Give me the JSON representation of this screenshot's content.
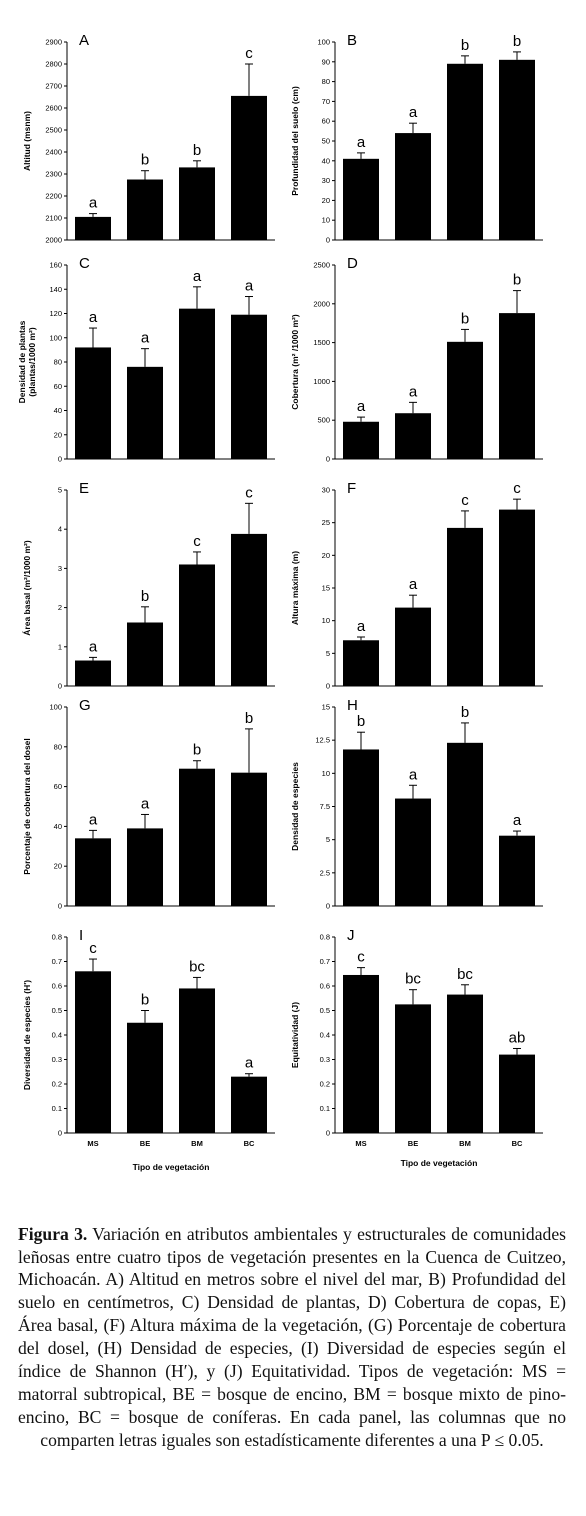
{
  "figure": {
    "xlabel": "Tipo de vegetación",
    "caption_label": "Figura 3.",
    "caption_text": "Variación en atributos ambientales y estructurales de comunidades leñosas entre cuatro tipos de vegetación presentes en la Cuenca de Cuitzeo, Michoacán. A) Altitud en metros sobre el nivel del mar, B) Profundidad del suelo en centímetros, C) Densidad de plantas, D) Cobertura de copas, E) Área basal, (F) Altura máxima de la vegetación, (G) Porcentaje de cobertura del dosel, (H) Densidad de especies, (I) Diversidad de especies según el índice de Shannon (H′), y (J) Equitatividad. Tipos de vegetación: MS = matorral subtropical, BE = bosque de encino, BM = bosque mixto de pino-encino, BC = bosque de coníferas. En cada panel, las columnas que no comparten letras iguales son estadísticamente diferentes a una P ≤ 0.05."
  },
  "chart_data": [
    {
      "type": "bar",
      "panel": "A",
      "categories": [
        "MS",
        "BE",
        "BM",
        "BC"
      ],
      "values": [
        2105,
        2275,
        2330,
        2655
      ],
      "errors": [
        15,
        40,
        30,
        145
      ],
      "significance": [
        "a",
        "b",
        "b",
        "c"
      ],
      "ylabel": "Altitud (msnm)",
      "ylim": [
        2000,
        2900
      ],
      "yticks": [
        "2000",
        "2100",
        "2200",
        "2300",
        "2400",
        "2500",
        "2600",
        "2700",
        "2800",
        "2900"
      ],
      "show_categories": false
    },
    {
      "type": "bar",
      "panel": "B",
      "categories": [
        "MS",
        "BE",
        "BM",
        "BC"
      ],
      "values": [
        41,
        54,
        89,
        91
      ],
      "errors": [
        3,
        5,
        4,
        4
      ],
      "significance": [
        "a",
        "a",
        "b",
        "b"
      ],
      "ylabel": "Profundidad del suelo (cm)",
      "ylim": [
        0,
        100
      ],
      "yticks": [
        "0",
        "10",
        "20",
        "30",
        "40",
        "50",
        "60",
        "70",
        "80",
        "90",
        "100"
      ],
      "show_categories": false
    },
    {
      "type": "bar",
      "panel": "C",
      "categories": [
        "MS",
        "BE",
        "BM",
        "BC"
      ],
      "values": [
        92,
        76,
        124,
        119
      ],
      "errors": [
        16,
        15,
        18,
        15
      ],
      "significance": [
        "a",
        "a",
        "a",
        "a"
      ],
      "ylabel": [
        "Densidad de plantas",
        "(plantas/1000 m²)"
      ],
      "ylim": [
        0,
        160
      ],
      "yticks": [
        "0",
        "20",
        "40",
        "60",
        "80",
        "100",
        "120",
        "140",
        "160"
      ],
      "show_categories": false
    },
    {
      "type": "bar",
      "panel": "D",
      "categories": [
        "MS",
        "BE",
        "BM",
        "BC"
      ],
      "values": [
        480,
        590,
        1510,
        1880
      ],
      "errors": [
        60,
        140,
        160,
        290
      ],
      "significance": [
        "a",
        "a",
        "b",
        "b"
      ],
      "ylabel": "Cobertura (m² /1000 m²)",
      "ylim": [
        0,
        2500
      ],
      "yticks": [
        "0",
        "500",
        "1000",
        "1500",
        "2000",
        "2500"
      ],
      "show_categories": false
    },
    {
      "type": "bar",
      "panel": "E",
      "categories": [
        "MS",
        "BE",
        "BM",
        "BC"
      ],
      "values": [
        0.65,
        1.62,
        3.1,
        3.88
      ],
      "errors": [
        0.08,
        0.4,
        0.32,
        0.78
      ],
      "significance": [
        "a",
        "b",
        "c",
        "c"
      ],
      "ylabel": "Área basal (m²/1000 m²)",
      "ylim": [
        0,
        5
      ],
      "yticks": [
        "0",
        "1",
        "2",
        "3",
        "4",
        "5"
      ],
      "show_categories": false
    },
    {
      "type": "bar",
      "panel": "F",
      "categories": [
        "MS",
        "BE",
        "BM",
        "BC"
      ],
      "values": [
        7,
        12,
        24.2,
        27
      ],
      "errors": [
        0.5,
        1.9,
        2.6,
        1.6
      ],
      "significance": [
        "a",
        "a",
        "c",
        "c"
      ],
      "ylabel": "Altura máxima (m)",
      "ylim": [
        0,
        30
      ],
      "yticks": [
        "0",
        "5",
        "10",
        "15",
        "20",
        "25",
        "30"
      ],
      "show_categories": false
    },
    {
      "type": "bar",
      "panel": "G",
      "categories": [
        "MS",
        "BE",
        "BM",
        "BC"
      ],
      "values": [
        34,
        39,
        69,
        67
      ],
      "errors": [
        4,
        7,
        4,
        22
      ],
      "significance": [
        "a",
        "a",
        "b",
        "b"
      ],
      "ylabel": "Porcentaje de cobertura del dosel",
      "ylim": [
        0,
        100
      ],
      "yticks": [
        "0",
        "20",
        "40",
        "60",
        "80",
        "100"
      ],
      "show_categories": false
    },
    {
      "type": "bar",
      "panel": "H",
      "categories": [
        "MS",
        "BE",
        "BM",
        "BC"
      ],
      "values": [
        11.8,
        8.1,
        12.3,
        5.3
      ],
      "errors": [
        1.3,
        1.0,
        1.5,
        0.35
      ],
      "significance": [
        "b",
        "a",
        "b",
        "a"
      ],
      "ylabel": "Densidad de especies",
      "ylim": [
        0,
        15
      ],
      "yticks": [
        "0",
        "2.5",
        "5",
        "7.5",
        "10",
        "12.5",
        "15"
      ],
      "show_categories": false
    },
    {
      "type": "bar",
      "panel": "I",
      "categories": [
        "MS",
        "BE",
        "BM",
        "BC"
      ],
      "values": [
        0.66,
        0.45,
        0.59,
        0.23
      ],
      "errors": [
        0.05,
        0.05,
        0.045,
        0.012
      ],
      "significance": [
        "c",
        "b",
        "bc",
        "a"
      ],
      "ylabel": "Diversidad de especies  (H')",
      "ylim": [
        0,
        0.8
      ],
      "yticks": [
        "0",
        "0.1",
        "0.2",
        "0.3",
        "0.4",
        "0.5",
        "0.6",
        "0.7",
        "0.8"
      ],
      "show_categories": true
    },
    {
      "type": "bar",
      "panel": "J",
      "categories": [
        "MS",
        "BE",
        "BM",
        "BC"
      ],
      "values": [
        0.645,
        0.525,
        0.565,
        0.32
      ],
      "errors": [
        0.03,
        0.06,
        0.04,
        0.025
      ],
      "significance": [
        "c",
        "bc",
        "bc",
        "ab"
      ],
      "ylabel": "Equitatividad  (J)",
      "ylim": [
        0,
        0.8
      ],
      "yticks": [
        "0",
        "0.1",
        "0.2",
        "0.3",
        "0.4",
        "0.5",
        "0.6",
        "0.7",
        "0.8"
      ],
      "show_categories": true
    }
  ]
}
